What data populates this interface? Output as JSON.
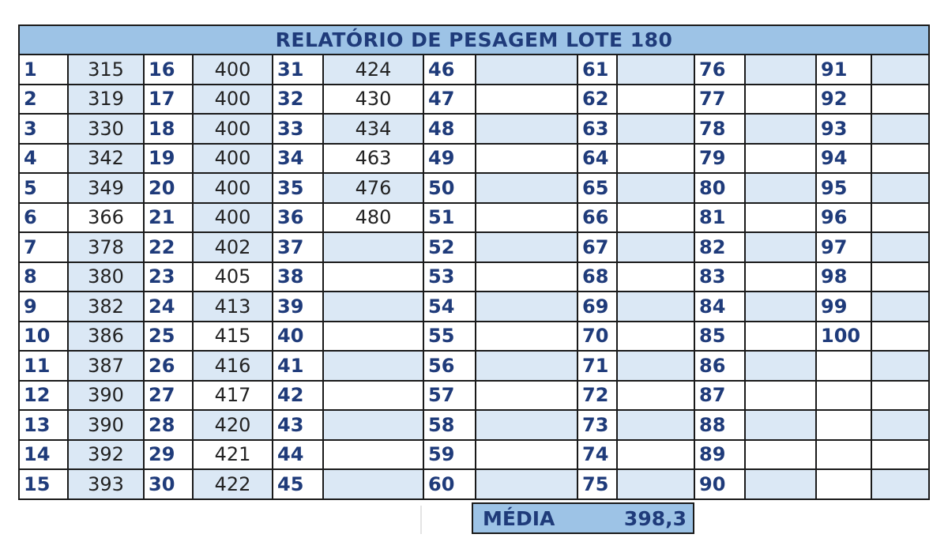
{
  "title": "RELATÓRIO DE PESAGEM LOTE 180",
  "columns": [
    {
      "start": 1,
      "values": [
        "315",
        "319",
        "330",
        "342",
        "349",
        "366",
        "378",
        "380",
        "382",
        "386",
        "387",
        "390",
        "390",
        "392",
        "393"
      ]
    },
    {
      "start": 16,
      "values": [
        "400",
        "400",
        "400",
        "400",
        "400",
        "400",
        "402",
        "405",
        "413",
        "415",
        "416",
        "417",
        "420",
        "421",
        "422"
      ]
    },
    {
      "start": 31,
      "values": [
        "424",
        "430",
        "434",
        "463",
        "476",
        "480",
        "",
        "",
        "",
        "",
        "",
        "",
        "",
        "",
        ""
      ]
    },
    {
      "start": 46,
      "values": [
        "",
        "",
        "",
        "",
        "",
        "",
        "",
        "",
        "",
        "",
        "",
        "",
        "",
        "",
        ""
      ]
    },
    {
      "start": 61,
      "values": [
        "",
        "",
        "",
        "",
        "",
        "",
        "",
        "",
        "",
        "",
        "",
        "",
        "",
        "",
        ""
      ]
    },
    {
      "start": 76,
      "values": [
        "",
        "",
        "",
        "",
        "",
        "",
        "",
        "",
        "",
        "",
        "",
        "",
        "",
        "",
        ""
      ]
    },
    {
      "start": 91,
      "values": [
        "",
        "",
        "",
        "",
        "",
        "",
        "",
        "",
        "",
        "",
        "",
        "",
        "",
        "",
        ""
      ],
      "last_number": 100
    }
  ],
  "highlight_cells": [
    {
      "column": 0,
      "rows": [
        1,
        3,
        7,
        9,
        11,
        13
      ]
    },
    {
      "column": 1,
      "rows": [
        1,
        3,
        5
      ]
    },
    {
      "column": 2,
      "rows": []
    }
  ],
  "summary": {
    "label": "MÉDIA",
    "value": "398,3"
  }
}
